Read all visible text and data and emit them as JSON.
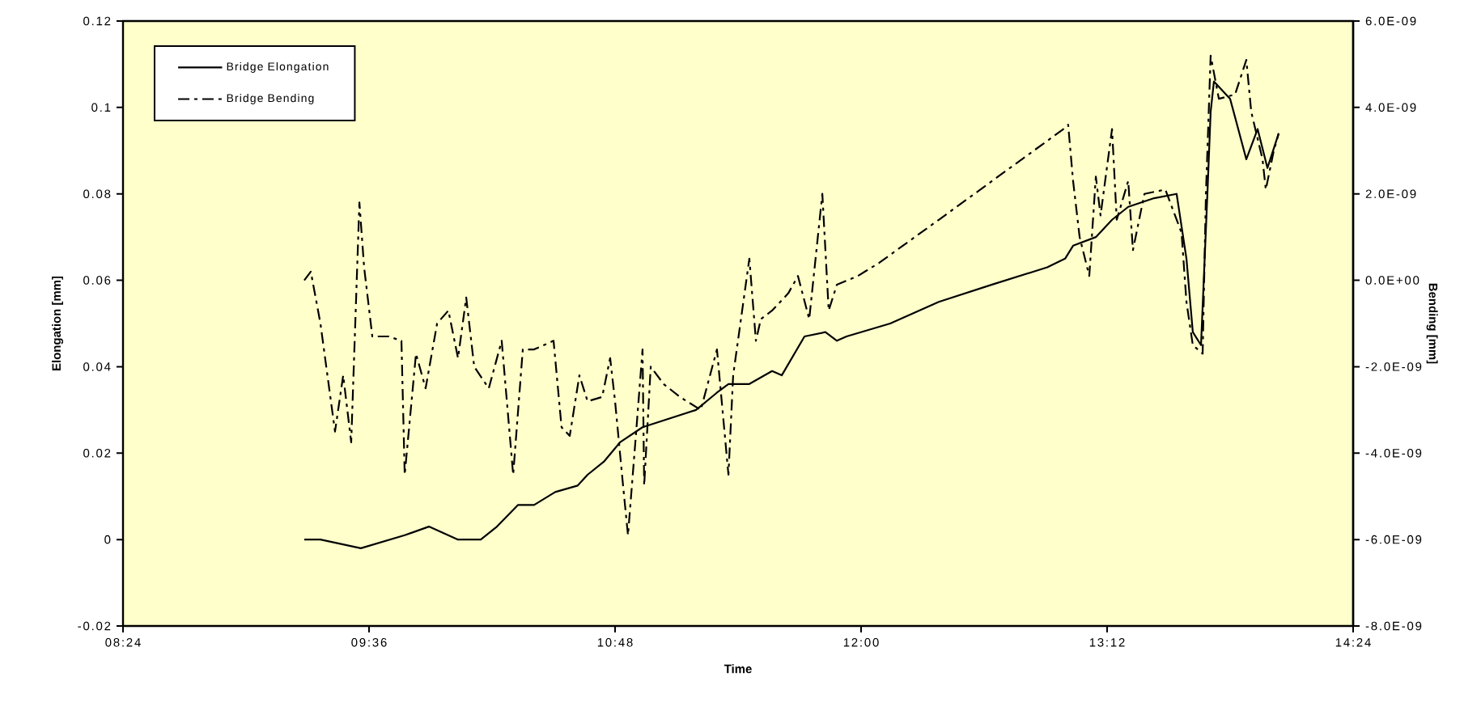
{
  "chart_data": {
    "type": "line",
    "xlabel": "Time",
    "ylabel": "Elongation [mm]",
    "y2label": "Bending [mm]",
    "xlim": [
      8.4,
      14.4
    ],
    "xticks": [
      {
        "value": 8.4,
        "label": "08:24"
      },
      {
        "value": 9.6,
        "label": "09:36"
      },
      {
        "value": 10.8,
        "label": "10:48"
      },
      {
        "value": 12.0,
        "label": "12:00"
      },
      {
        "value": 13.2,
        "label": "13:12"
      },
      {
        "value": 14.4,
        "label": "14:24"
      }
    ],
    "ylim": [
      -0.02,
      0.12
    ],
    "yticks": [
      -0.02,
      0,
      0.02,
      0.04,
      0.06,
      0.08,
      0.1,
      0.12
    ],
    "y2lim": [
      -8e-09,
      6e-09
    ],
    "y2ticks": [
      {
        "value": -8e-09,
        "label": "-8.0E-09"
      },
      {
        "value": -6e-09,
        "label": "-6.0E-09"
      },
      {
        "value": -4e-09,
        "label": "-4.0E-09"
      },
      {
        "value": -2e-09,
        "label": "-2.0E-09"
      },
      {
        "value": 0,
        "label": "0.0E+00"
      },
      {
        "value": 2e-09,
        "label": "2.0E-09"
      },
      {
        "value": 4e-09,
        "label": "4.0E-09"
      },
      {
        "value": 6e-09,
        "label": "6.0E-09"
      }
    ],
    "grid": false,
    "legend": "top left",
    "marker": "none",
    "series": [
      {
        "name": "Bridge Elongation",
        "color": "#000000",
        "line_style": "solid",
        "x": [
          9.284,
          9.363,
          9.56,
          9.774,
          9.892,
          10.034,
          10.145,
          10.224,
          10.326,
          10.405,
          10.508,
          10.618,
          10.666,
          10.745,
          10.824,
          10.934,
          11.195,
          11.297,
          11.353,
          11.455,
          11.566,
          11.613,
          11.724,
          11.826,
          11.882,
          11.929,
          12.142,
          12.379,
          12.639,
          12.908,
          12.995,
          13.034,
          13.145,
          13.224,
          13.303,
          13.429,
          13.539,
          13.587,
          13.618,
          13.658,
          13.69,
          13.705,
          13.721,
          13.8,
          13.879,
          13.934,
          13.982,
          14.037
        ],
        "values": [
          0,
          0,
          -0.002,
          0.001,
          0.003,
          0.0,
          0.0,
          0.003,
          0.008,
          0.008,
          0.011,
          0.0125,
          0.015,
          0.018,
          0.0225,
          0.026,
          0.03,
          0.034,
          0.036,
          0.036,
          0.039,
          0.038,
          0.047,
          0.048,
          0.046,
          0.047,
          0.05,
          0.055,
          0.059,
          0.063,
          0.065,
          0.068,
          0.07,
          0.074,
          0.077,
          0.079,
          0.08,
          0.065,
          0.048,
          0.045,
          0.081,
          0.099,
          0.106,
          0.102,
          0.088,
          0.095,
          0.086,
          0.094
        ]
      },
      {
        "name": "Bridge Bending",
        "color": "#000000",
        "line_style": "dashdot",
        "axis": "y2",
        "x": [
          9.284,
          9.316,
          9.363,
          9.434,
          9.474,
          9.513,
          9.553,
          9.576,
          9.616,
          9.695,
          9.758,
          9.774,
          9.829,
          9.876,
          9.932,
          9.987,
          10.034,
          10.074,
          10.113,
          10.184,
          10.247,
          10.303,
          10.35,
          10.405,
          10.5,
          10.539,
          10.579,
          10.626,
          10.666,
          10.737,
          10.776,
          10.8,
          10.839,
          10.863,
          10.903,
          10.934,
          10.942,
          10.974,
          11.037,
          11.116,
          11.218,
          11.297,
          11.353,
          11.376,
          11.455,
          11.487,
          11.511,
          11.566,
          11.645,
          11.692,
          11.747,
          11.811,
          11.842,
          11.882,
          11.984,
          12.087,
          12.379,
          12.987,
          13.01,
          13.034,
          13.066,
          13.113,
          13.145,
          13.168,
          13.224,
          13.247,
          13.303,
          13.326,
          13.382,
          13.484,
          13.563,
          13.587,
          13.618,
          13.666,
          13.682,
          13.705,
          13.745,
          13.824,
          13.879,
          13.903,
          13.958,
          13.974,
          14.013,
          14.037
        ],
        "values": [
          0.0,
          2e-10,
          -1e-09,
          -3.5e-09,
          -2.2e-09,
          -3.75e-09,
          1.8e-09,
          3e-10,
          -1.3e-09,
          -1.3e-09,
          -1.4e-09,
          -4.5e-09,
          -1.7e-09,
          -2.5e-09,
          -1e-09,
          -7e-10,
          -1.8e-09,
          -4e-10,
          -2e-09,
          -2.5e-09,
          -1.4e-09,
          -4.5e-09,
          -1.6e-09,
          -1.6e-09,
          -1.4e-09,
          -3.4e-09,
          -3.6e-09,
          -2.2e-09,
          -2.8e-09,
          -2.7e-09,
          -1.8e-09,
          -2.8e-09,
          -4.75e-09,
          -5.9e-09,
          -3.5e-09,
          -1.6e-09,
          -4.75e-09,
          -2e-09,
          -2.4e-09,
          -2.7e-09,
          -3e-09,
          -1.6e-09,
          -4.5e-09,
          -2.2e-09,
          5e-10,
          -1.4e-09,
          -9e-10,
          -7e-10,
          -3e-10,
          1e-10,
          -9e-10,
          2e-09,
          -7e-10,
          -1e-10,
          1e-10,
          4e-10,
          1.4e-09,
          3.5e-09,
          3.6e-09,
          2.3e-09,
          1e-09,
          1e-10,
          2.4e-09,
          1.5e-09,
          3.5e-09,
          1.4e-09,
          2.3e-09,
          7e-10,
          2e-09,
          2.1e-09,
          1.1e-09,
          -5e-10,
          -1.5e-09,
          -1.7e-09,
          2e-09,
          5.2e-09,
          4.2e-09,
          4.3e-09,
          5.1e-09,
          3.9e-09,
          2.8e-09,
          2.1e-09,
          3e-09,
          3.4e-09
        ]
      }
    ]
  }
}
